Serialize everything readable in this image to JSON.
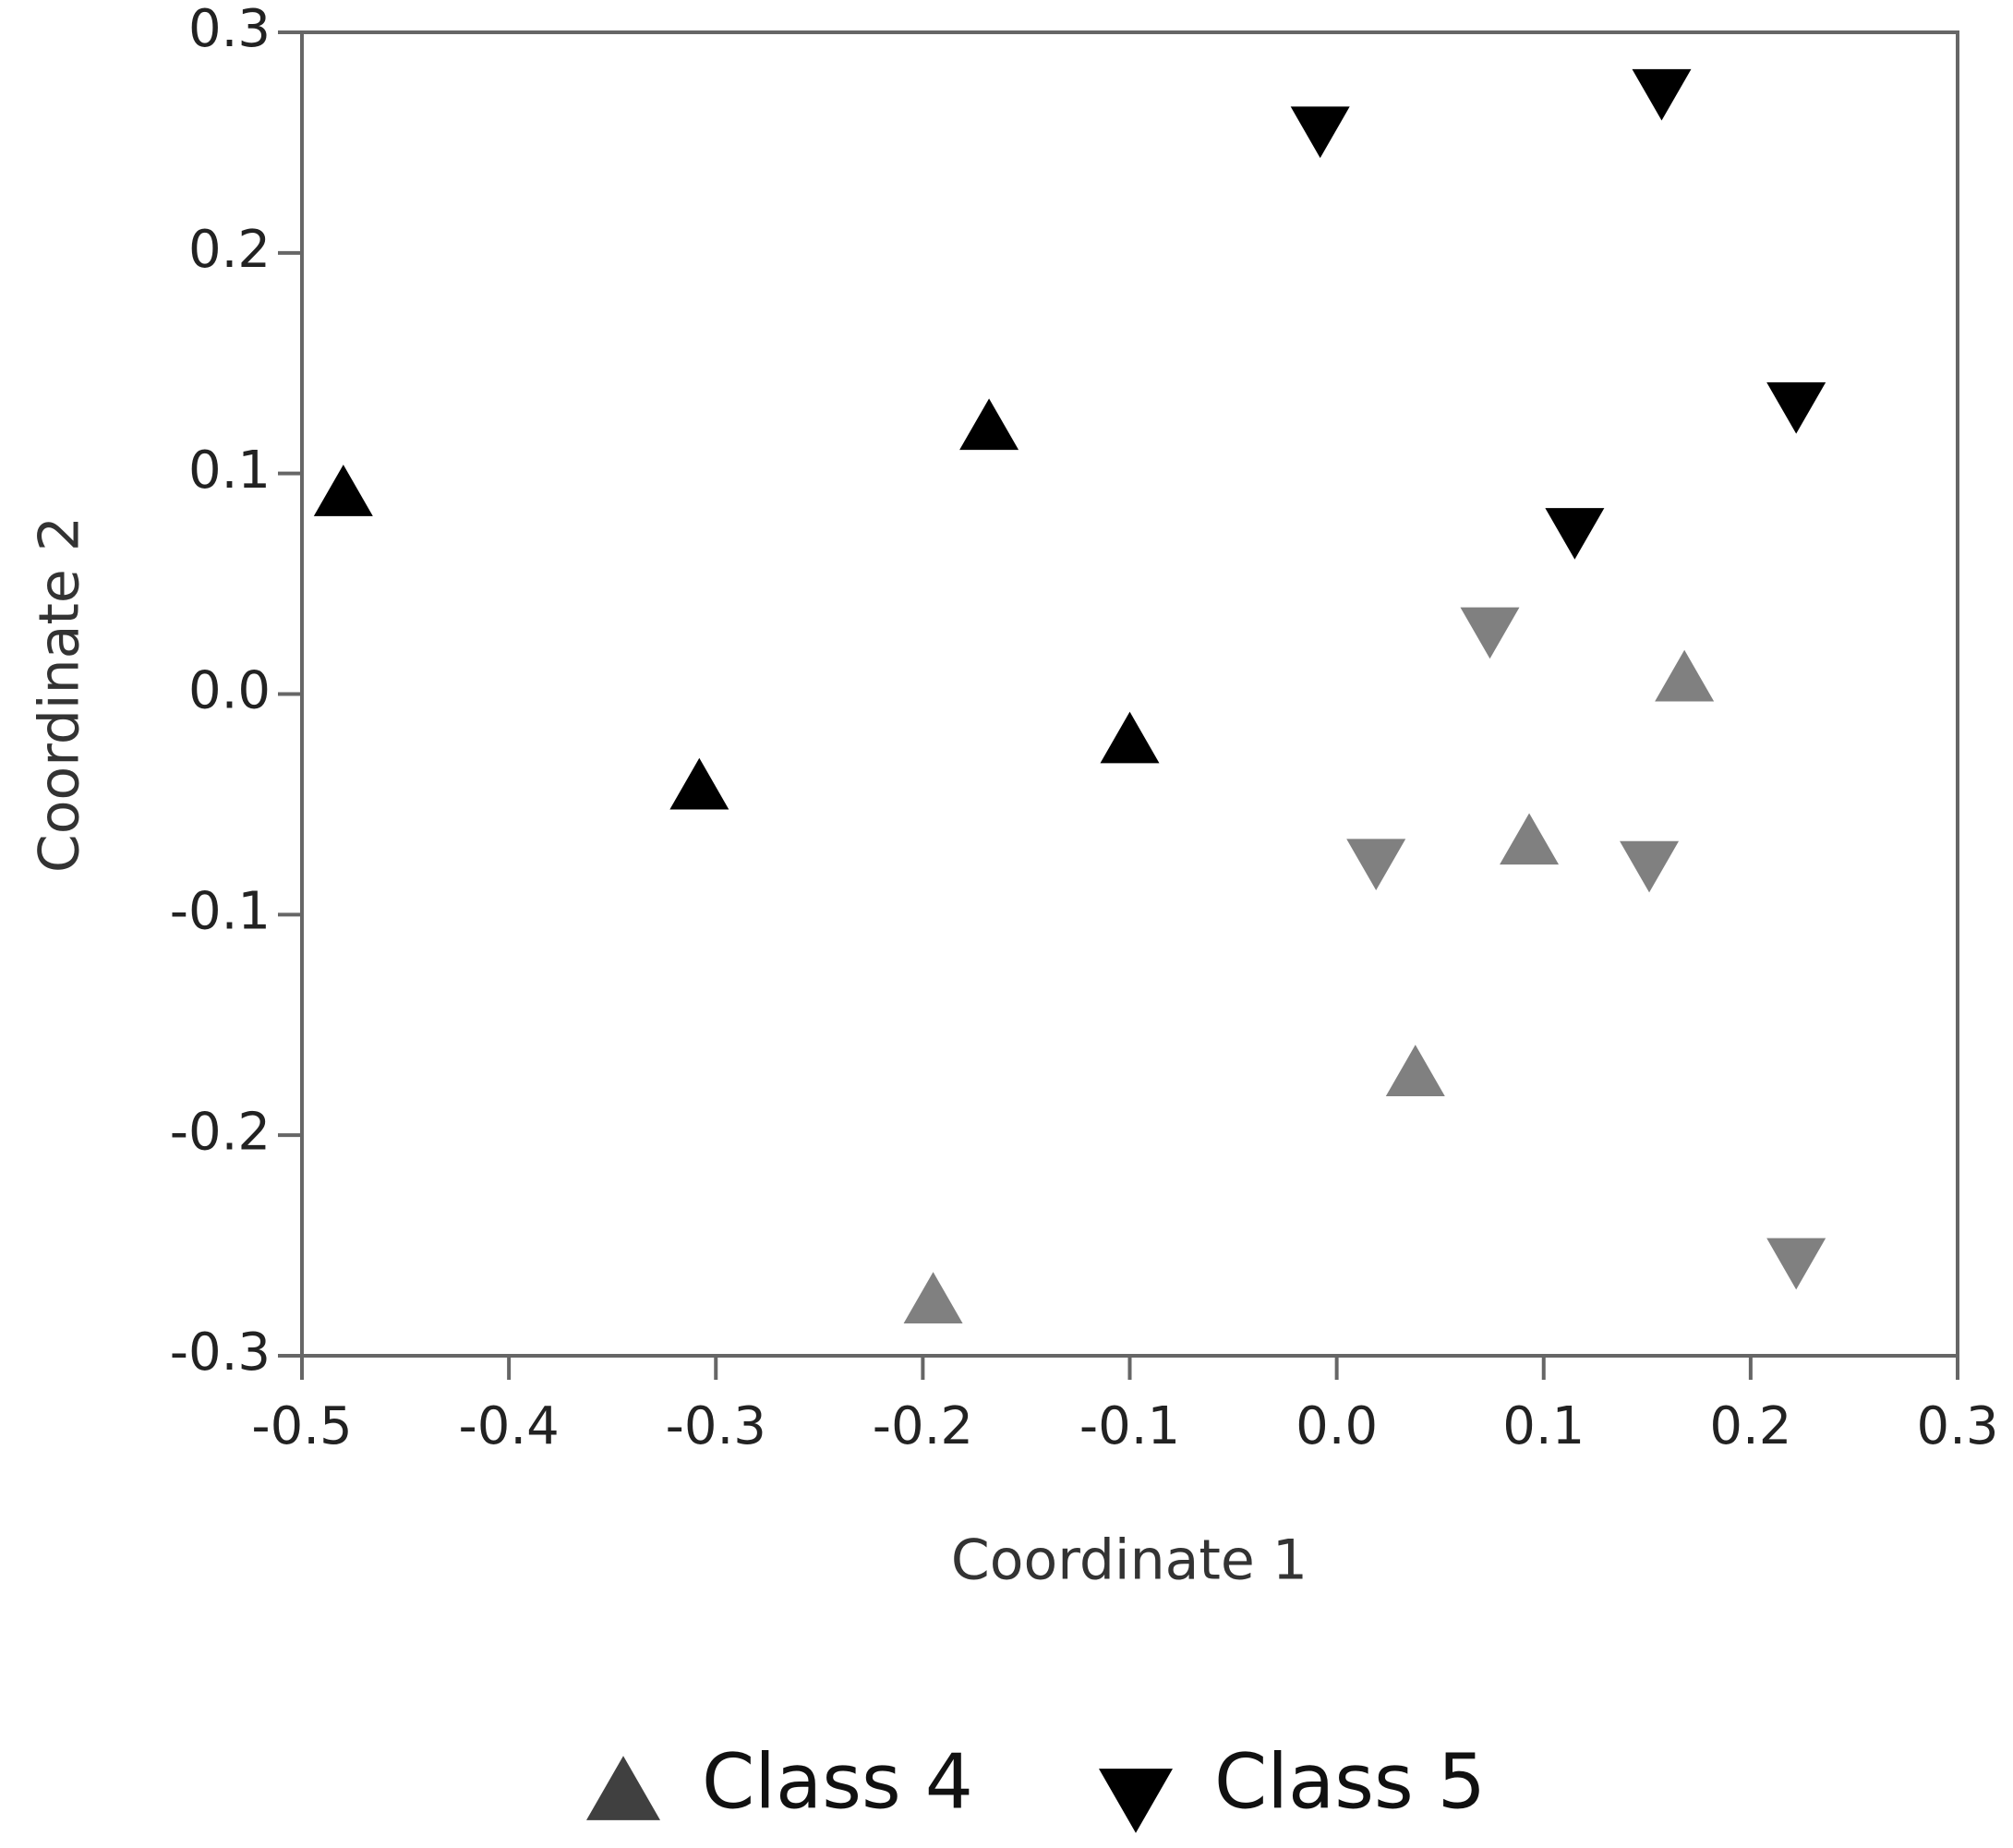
{
  "chart_data": {
    "type": "scatter",
    "x_label": "Coordinate 1",
    "y_label": "Coordinate 2",
    "xlim": [
      -0.5,
      0.3
    ],
    "ylim": [
      -0.3,
      0.3
    ],
    "xticks": [
      -0.5,
      -0.4,
      -0.3,
      -0.2,
      -0.1,
      {
        "value": 0,
        "label": "0.0"
      },
      0.1,
      0.2,
      0.3
    ],
    "yticks": [
      -0.3,
      -0.2,
      -0.1,
      {
        "value": 0,
        "label": "0.0"
      },
      0.1,
      0.2,
      0.3
    ],
    "grid": false,
    "legend": "bottom",
    "series": [
      {
        "name": "Class 4",
        "marker": "triangle-up",
        "color": "#404040",
        "x": [
          -0.48,
          -0.168,
          -0.308,
          -0.1,
          0.168,
          0.093,
          0.038,
          -0.195
        ],
        "values": [
          0.09,
          0.12,
          -0.043,
          -0.022,
          0.006,
          -0.068,
          -0.173,
          -0.276
        ],
        "point_colors": [
          "#000000",
          "#000000",
          "#000000",
          "#000000",
          "#808080",
          "#808080",
          "#808080",
          "#808080"
        ]
      },
      {
        "name": "Class 5",
        "marker": "triangle-down",
        "color": "#000000",
        "x": [
          -0.008,
          0.157,
          0.222,
          0.115,
          0.074,
          0.019,
          0.151,
          0.222
        ],
        "values": [
          0.257,
          0.274,
          0.132,
          0.075,
          0.03,
          -0.075,
          -0.076,
          -0.256
        ],
        "point_colors": [
          "#000000",
          "#000000",
          "#000000",
          "#000000",
          "#808080",
          "#808080",
          "#808080",
          "#808080"
        ]
      }
    ]
  }
}
